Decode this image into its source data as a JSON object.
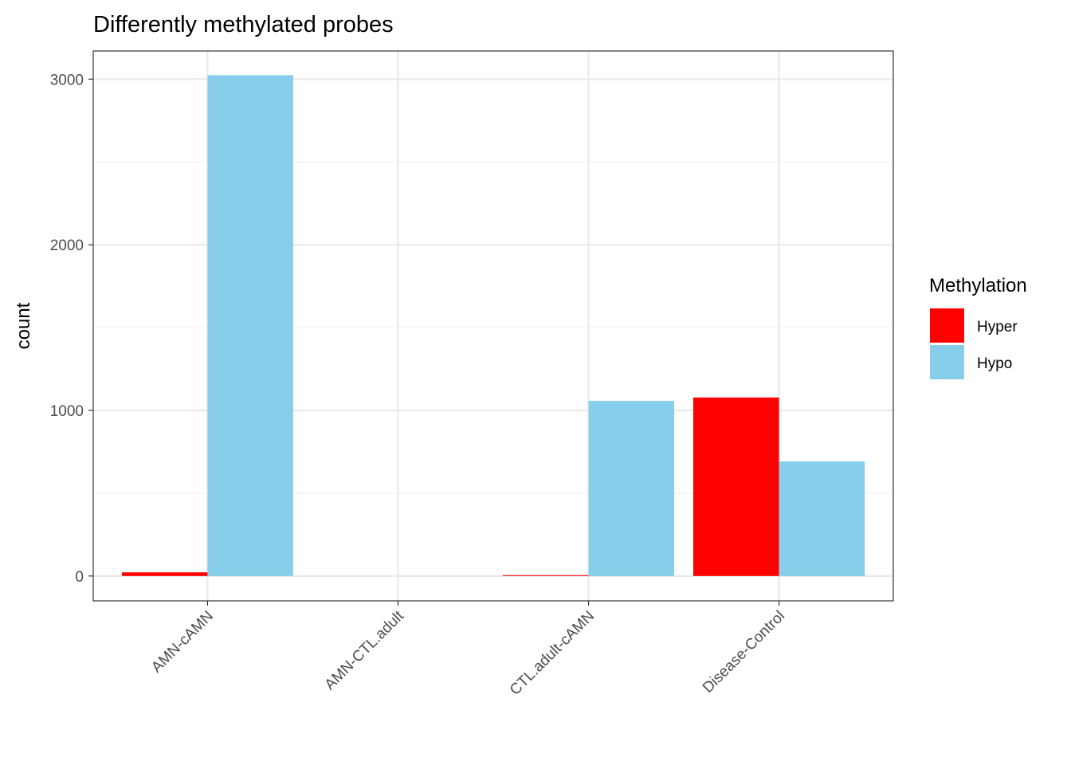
{
  "chart_data": {
    "type": "bar",
    "title": "Differently methylated probes",
    "xlabel": "",
    "ylabel": "count",
    "categories": [
      "AMN-cAMN",
      "AMN-CTL.adult",
      "CTL.adult-cAMN",
      "Disease-Control"
    ],
    "series": [
      {
        "name": "Hyper",
        "color": "#ff0000",
        "values": [
          22,
          0,
          5,
          1078
        ]
      },
      {
        "name": "Hypo",
        "color": "#87ceeb",
        "values": [
          3024,
          0,
          1058,
          692
        ]
      }
    ],
    "ylim": [
      -150,
      3170
    ],
    "yticks": [
      0,
      1000,
      2000,
      3000
    ],
    "grid": true,
    "legend": {
      "title": "Methylation",
      "position": "right"
    }
  }
}
